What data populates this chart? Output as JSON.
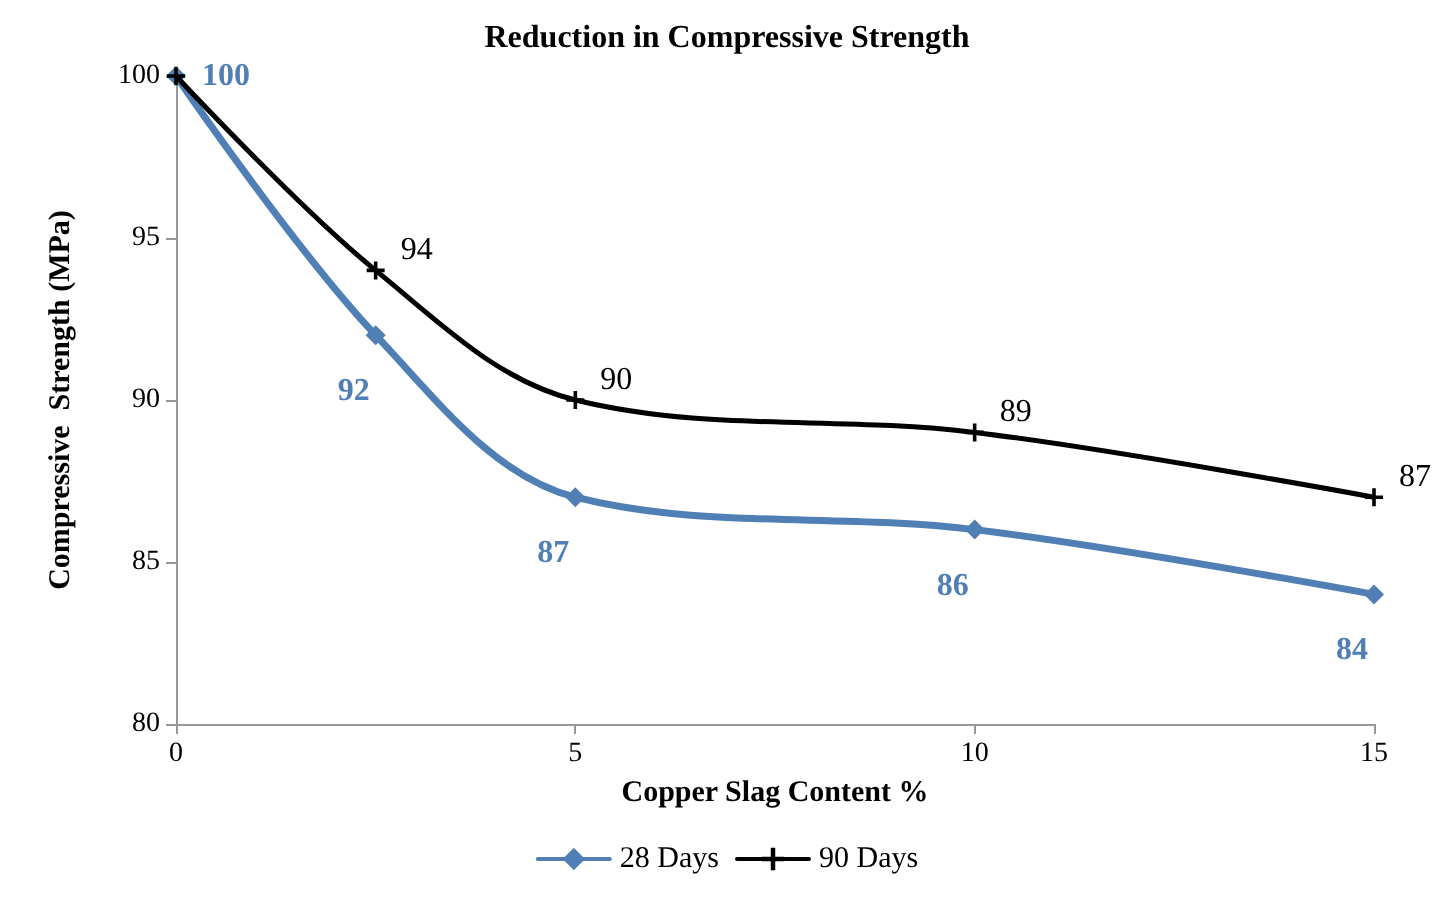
{
  "chart_data": {
    "type": "line",
    "title": "Reduction in Compressive Strength",
    "xlabel": "Copper Slag Content %",
    "ylabel": "Compressive  Strength (MPa)",
    "x": [
      0,
      2.5,
      5,
      10,
      15
    ],
    "xlim": [
      0,
      15
    ],
    "xticks": [
      0,
      5,
      10,
      15
    ],
    "ylim": [
      80,
      100
    ],
    "yticks": [
      80,
      85,
      90,
      95,
      100
    ],
    "grid": false,
    "legend": "bottom",
    "line_style": "solid",
    "series": [
      {
        "name": "28 Days",
        "color": "#4f7fb4",
        "marker": "diamond",
        "values": [
          100,
          92,
          87,
          86,
          84
        ],
        "value_labels": [
          "100",
          "92",
          "87",
          "86",
          "84"
        ]
      },
      {
        "name": "90 Days",
        "color": "#000000",
        "marker": "cross",
        "values": [
          100,
          94,
          90,
          89,
          87
        ],
        "value_labels": [
          null,
          "94",
          "90",
          "89",
          "87"
        ]
      }
    ]
  }
}
